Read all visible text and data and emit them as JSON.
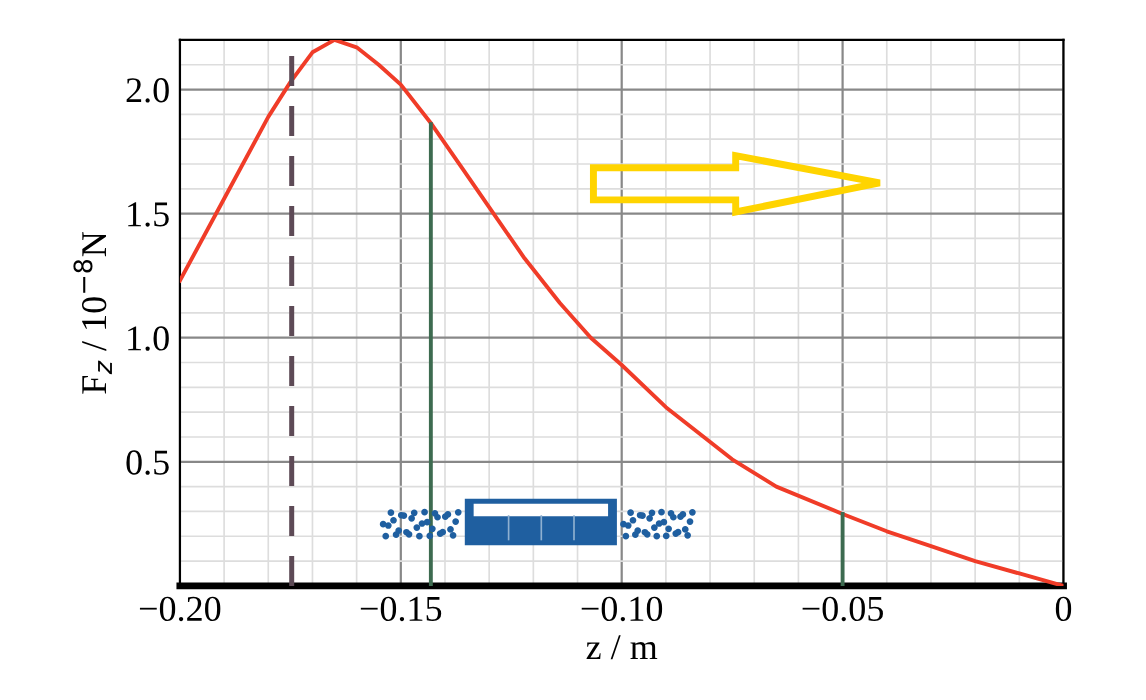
{
  "chart_data": {
    "type": "line",
    "xlabel": "z / m",
    "ylabel": "F$_{z}$ / 10$^{−8}$N",
    "xlim": [
      -0.2,
      0
    ],
    "ylim": [
      0,
      2.2
    ],
    "xticks": [
      {
        "value": -0.2,
        "label": "−0.20"
      },
      {
        "value": -0.15,
        "label": "−0.15"
      },
      {
        "value": -0.1,
        "label": "−0.10"
      },
      {
        "value": -0.05,
        "label": "−0.05"
      },
      0
    ],
    "yticks": [
      0.5,
      {
        "value": 1,
        "label": "1.0"
      },
      1.5,
      {
        "value": 2,
        "label": "2.0"
      }
    ],
    "grid": true,
    "legend": false,
    "series": [
      {
        "color": "#f03c28",
        "line_style": "solid",
        "x": [
          -0.2,
          -0.19,
          -0.18,
          -0.175,
          -0.17,
          -0.165,
          -0.16,
          -0.155,
          -0.15,
          -0.143,
          -0.136,
          -0.129,
          -0.122,
          -0.114,
          -0.107,
          -0.1,
          -0.09,
          -0.075,
          -0.065,
          -0.05,
          -0.04,
          -0.03,
          -0.02,
          -0.01,
          0
        ],
        "values": [
          1.23,
          1.56,
          1.89,
          2.03,
          2.15,
          2.2,
          2.17,
          2.1,
          2.02,
          1.86,
          1.68,
          1.5,
          1.32,
          1.14,
          1.0,
          0.89,
          0.72,
          0.51,
          0.4,
          0.29,
          0.22,
          0.16,
          0.1,
          0.05,
          0
        ]
      },
      {
        "color": "#5d4a56",
        "line_style": "dashed",
        "x": [
          -0.1747,
          -0.1747
        ],
        "values": [
          0,
          2.15
        ]
      },
      {
        "color": "#3d6b50",
        "line_style": "solid",
        "x": [
          -0.1432,
          -0.1432
        ],
        "values": [
          0,
          1.86
        ]
      },
      {
        "color": "#3d6b50",
        "line_style": "solid",
        "x": [
          -0.05,
          -0.05
        ],
        "values": [
          0,
          0.29
        ]
      }
    ]
  }
}
